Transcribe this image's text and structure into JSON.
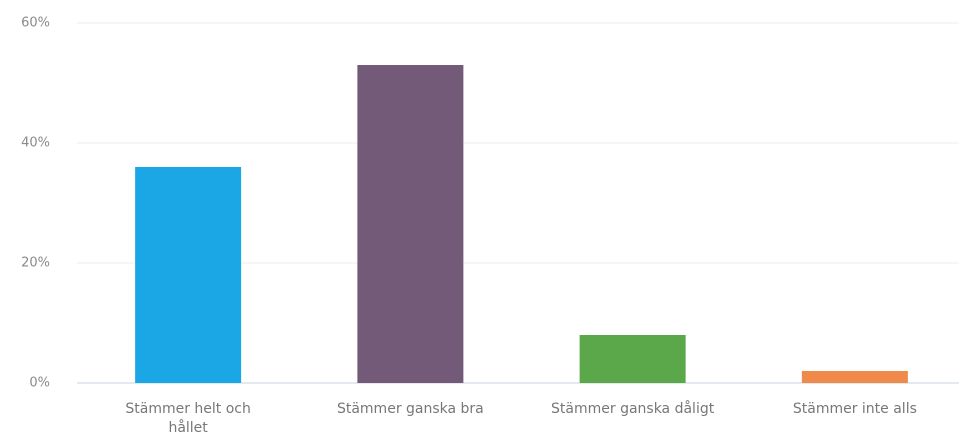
{
  "chart_data": {
    "type": "bar",
    "categories": [
      "Stämmer helt och hållet",
      "Stämmer ganska bra",
      "Stämmer ganska dåligt",
      "Stämmer inte alls"
    ],
    "values": [
      36,
      53,
      8,
      2
    ],
    "colors": [
      "#1ba7e6",
      "#735a78",
      "#5aa84a",
      "#f08a4b"
    ],
    "ylim": [
      0,
      60
    ],
    "yticks": [
      {
        "value": 0,
        "label": "0%"
      },
      {
        "value": 20,
        "label": "20%"
      },
      {
        "value": 40,
        "label": "40%"
      },
      {
        "value": 60,
        "label": "60%"
      }
    ],
    "grid": true
  }
}
